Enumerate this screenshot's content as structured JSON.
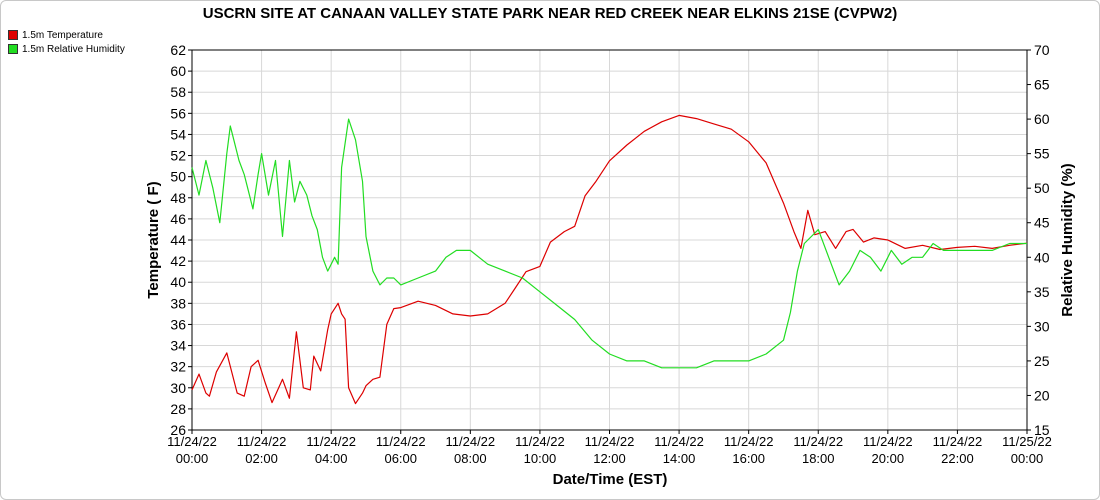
{
  "chart_data": {
    "type": "line",
    "title": "USCRN SITE AT CANAAN VALLEY STATE PARK NEAR RED CREEK NEAR ELKINS 21SE (CVPW2)",
    "xlabel": "Date/Time (EST)",
    "ylabel_left": "Temperature ( F)",
    "ylabel_right": "Relative Humidity (%)",
    "y_left_range": [
      26,
      62
    ],
    "y_right_range": [
      15,
      70
    ],
    "y_left_ticks": [
      "26",
      "28",
      "30",
      "32",
      "34",
      "36",
      "38",
      "40",
      "42",
      "44",
      "46",
      "48",
      "50",
      "52",
      "54",
      "56",
      "58",
      "60",
      "62"
    ],
    "y_right_ticks": [
      "15",
      "20",
      "25",
      "30",
      "35",
      "40",
      "45",
      "50",
      "55",
      "60",
      "65",
      "70"
    ],
    "x_tick_labels": [
      [
        "11/24/22",
        "00:00"
      ],
      [
        "11/24/22",
        "02:00"
      ],
      [
        "11/24/22",
        "04:00"
      ],
      [
        "11/24/22",
        "06:00"
      ],
      [
        "11/24/22",
        "08:00"
      ],
      [
        "11/24/22",
        "10:00"
      ],
      [
        "11/24/22",
        "12:00"
      ],
      [
        "11/24/22",
        "14:00"
      ],
      [
        "11/24/22",
        "16:00"
      ],
      [
        "11/24/22",
        "18:00"
      ],
      [
        "11/24/22",
        "20:00"
      ],
      [
        "11/24/22",
        "22:00"
      ],
      [
        "11/25/22",
        "00:00"
      ]
    ],
    "grid": true,
    "legend_position": "top-left",
    "series": [
      {
        "name": "1.5m Temperature",
        "axis": "left",
        "color": "#dd0000",
        "x_hours": [
          0,
          0.2,
          0.4,
          0.5,
          0.7,
          1.0,
          1.3,
          1.5,
          1.7,
          1.9,
          2.1,
          2.3,
          2.6,
          2.8,
          3.0,
          3.2,
          3.4,
          3.5,
          3.7,
          3.9,
          4.0,
          4.2,
          4.3,
          4.4,
          4.5,
          4.7,
          4.9,
          5.0,
          5.2,
          5.4,
          5.6,
          5.8,
          6.0,
          6.5,
          7.0,
          7.5,
          8.0,
          8.5,
          9.0,
          9.3,
          9.6,
          10.0,
          10.3,
          10.7,
          11.0,
          11.3,
          11.6,
          12.0,
          12.5,
          13.0,
          13.5,
          14.0,
          14.5,
          15.0,
          15.5,
          16.0,
          16.5,
          17.0,
          17.3,
          17.5,
          17.7,
          17.9,
          18.2,
          18.5,
          18.8,
          19.0,
          19.3,
          19.6,
          20.0,
          20.5,
          21.0,
          21.5,
          22.0,
          22.5,
          23.0,
          23.5,
          24.0
        ],
        "values": [
          29.8,
          31.3,
          29.5,
          29.2,
          31.5,
          33.3,
          29.5,
          29.2,
          32.0,
          32.6,
          30.5,
          28.6,
          30.8,
          29.0,
          35.3,
          30.0,
          29.8,
          33.0,
          31.6,
          35.5,
          37.0,
          38.0,
          37.0,
          36.5,
          30.0,
          28.5,
          29.5,
          30.2,
          30.8,
          31.0,
          36.0,
          37.5,
          37.6,
          38.2,
          37.8,
          37.0,
          36.8,
          37.0,
          38.0,
          39.5,
          41.0,
          41.5,
          43.8,
          44.8,
          45.3,
          48.2,
          49.5,
          51.5,
          53.0,
          54.3,
          55.2,
          55.8,
          55.5,
          55.0,
          54.5,
          53.3,
          51.3,
          47.5,
          44.8,
          43.2,
          46.8,
          44.5,
          44.8,
          43.2,
          44.8,
          45.0,
          43.8,
          44.2,
          44.0,
          43.2,
          43.5,
          43.1,
          43.3,
          43.4,
          43.2,
          43.5,
          43.7
        ]
      },
      {
        "name": "1.5m Relative Humidity",
        "axis": "right",
        "color": "#22dd22",
        "x_hours": [
          0,
          0.2,
          0.4,
          0.6,
          0.8,
          1.0,
          1.1,
          1.2,
          1.35,
          1.5,
          1.6,
          1.75,
          1.9,
          2.0,
          2.2,
          2.4,
          2.6,
          2.8,
          2.95,
          3.1,
          3.3,
          3.45,
          3.6,
          3.75,
          3.9,
          4.0,
          4.1,
          4.2,
          4.3,
          4.5,
          4.7,
          4.9,
          5.0,
          5.2,
          5.4,
          5.6,
          5.8,
          6.0,
          6.5,
          7.0,
          7.3,
          7.6,
          8.0,
          8.5,
          9.0,
          9.5,
          10.0,
          10.5,
          11.0,
          11.5,
          12.0,
          12.5,
          13.0,
          13.5,
          14.0,
          14.5,
          15.0,
          15.5,
          16.0,
          16.5,
          17.0,
          17.2,
          17.4,
          17.6,
          18.0,
          18.3,
          18.6,
          18.9,
          19.2,
          19.5,
          19.8,
          20.1,
          20.4,
          20.7,
          21.0,
          21.3,
          21.6,
          22.0,
          23.0,
          23.5,
          24.0
        ],
        "values": [
          53,
          49,
          54,
          50,
          45,
          55,
          59,
          57,
          54,
          52,
          50,
          47,
          52,
          55,
          49,
          54,
          43,
          54,
          48,
          51,
          49,
          46,
          44,
          40,
          38,
          39,
          40,
          39,
          53,
          60,
          57,
          51,
          43,
          38,
          36,
          37,
          37,
          36,
          37,
          38,
          40,
          41,
          41,
          39,
          38,
          37,
          35,
          33,
          31,
          28,
          26,
          25,
          25,
          24,
          24,
          24,
          25,
          25,
          25,
          26,
          28,
          32,
          38,
          42,
          44,
          40,
          36,
          38,
          41,
          40,
          38,
          41,
          39,
          40,
          40,
          42,
          41,
          41,
          41,
          42,
          42
        ]
      }
    ]
  }
}
